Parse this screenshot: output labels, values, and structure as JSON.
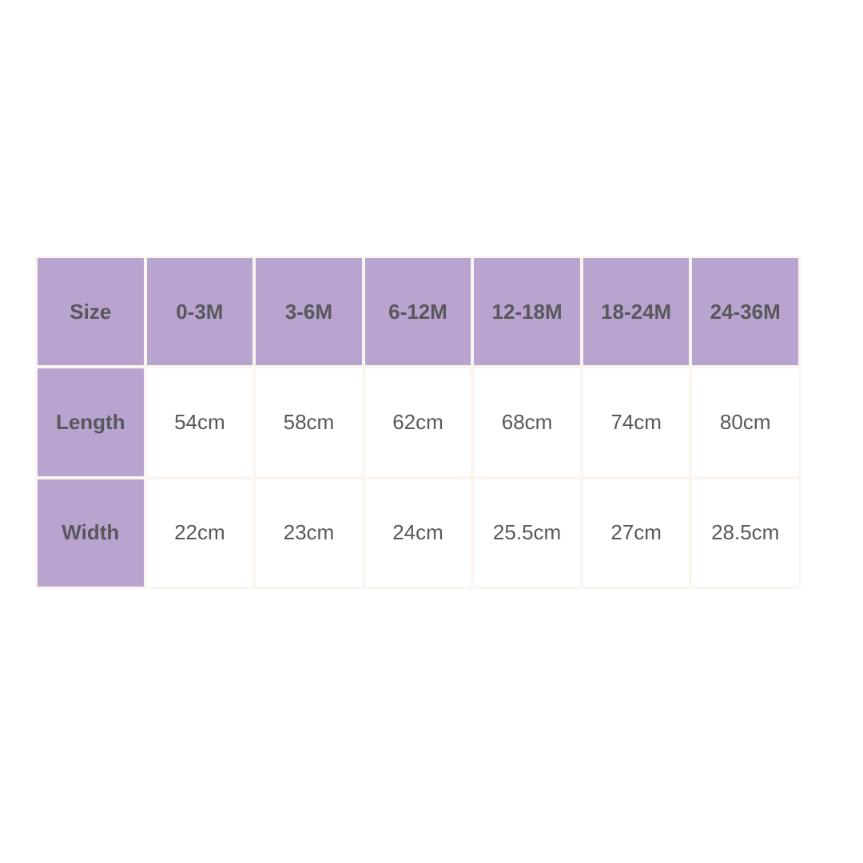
{
  "table": {
    "header": [
      "Size",
      "0-3M",
      "3-6M",
      "6-12M",
      "12-18M",
      "18-24M",
      "24-36M"
    ],
    "rows": [
      [
        "Length",
        "54cm",
        "58cm",
        "62cm",
        "68cm",
        "74cm",
        "80cm"
      ],
      [
        "Width",
        "22cm",
        "23cm",
        "24cm",
        "25.5cm",
        "27cm",
        "28.5cm"
      ]
    ]
  }
}
